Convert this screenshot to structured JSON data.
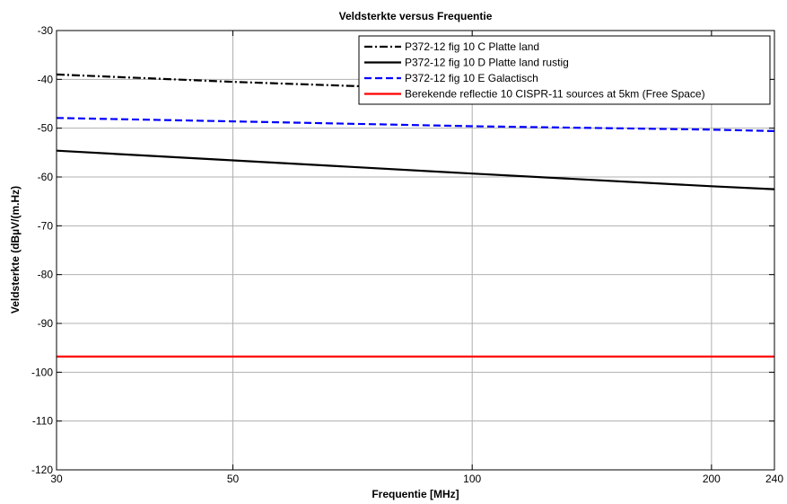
{
  "chart_data": {
    "type": "line",
    "title": "Veldsterkte versus Frequentie",
    "xlabel": "Frequentie [MHz]",
    "ylabel": "Veldsterkte (dBµV/(m.Hz)",
    "x_scale": "log",
    "xlim": [
      30,
      240
    ],
    "ylim": [
      -120,
      -30
    ],
    "xticks": [
      30,
      50,
      100,
      200,
      240
    ],
    "yticks": [
      -30,
      -40,
      -50,
      -60,
      -70,
      -80,
      -90,
      -100,
      -110,
      -120
    ],
    "grid": true,
    "legend_position": "top-right",
    "series": [
      {
        "name": "P372-12 fig 10 C Platte land",
        "color": "#000000",
        "dash": "dashdot",
        "x": [
          30,
          50,
          75
        ],
        "y": [
          -39,
          -40.5,
          -41.5
        ]
      },
      {
        "name": "P372-12 fig 10 D Platte land rustig",
        "color": "#000000",
        "dash": "solid",
        "x": [
          30,
          50,
          100,
          200,
          240
        ],
        "y": [
          -54.6,
          -56.6,
          -59.3,
          -61.9,
          -62.5
        ]
      },
      {
        "name": "P372-12 fig 10 E Galactisch",
        "color": "#0000ff",
        "dash": "dashed",
        "x": [
          30,
          50,
          100,
          200,
          240
        ],
        "y": [
          -47.9,
          -48.6,
          -49.6,
          -50.3,
          -50.6
        ]
      },
      {
        "name": "Berekende reflectie 10 CISPR-11 sources  at 5km (Free Space)",
        "color": "#ff0000",
        "dash": "solid",
        "x": [
          30,
          240
        ],
        "y": [
          -96.8,
          -96.8
        ]
      }
    ]
  }
}
